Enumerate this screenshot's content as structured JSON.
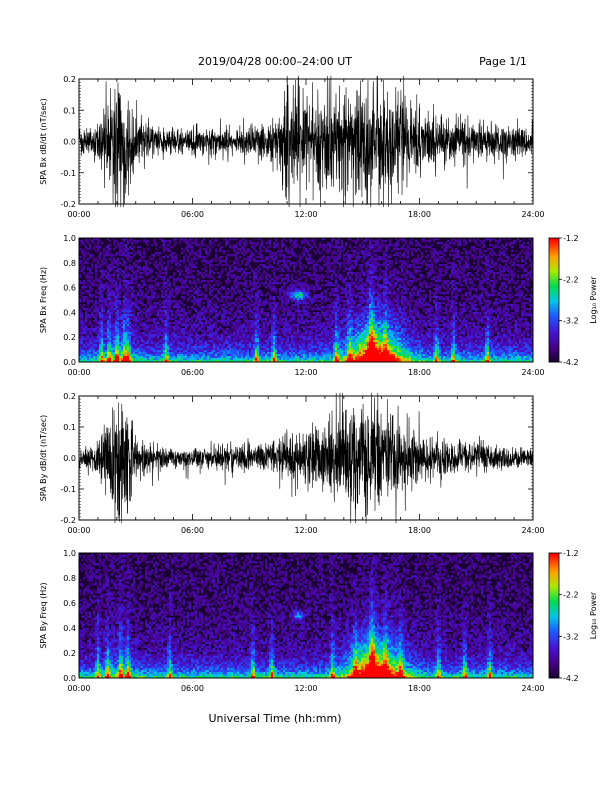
{
  "header": {
    "date_range": "2019/04/28  00:00–24:00 UT",
    "page": "Page 1/1"
  },
  "x_axis_label": "Universal Time (hh:mm)",
  "time_ticks": [
    "00:00",
    "06:00",
    "12:00",
    "18:00",
    "24:00"
  ],
  "colorbar_ticks": [
    "-1.2",
    "-2.2",
    "-3.2",
    "-4.2"
  ],
  "colorbar_label": "Log₁₀ Power",
  "colors": {
    "waveform": "#000000",
    "spectrogram_background": "#1a0033"
  },
  "chart_data": [
    {
      "type": "line",
      "ylabel": "SPA Bx dB/dt (nT/sec)",
      "xlim": [
        0,
        24
      ],
      "ylim": [
        -0.2,
        0.2
      ],
      "yticks": [
        "0.2",
        "0.1",
        "0.0",
        "-0.1",
        "-0.2"
      ],
      "amplitude_envelope": {
        "hours": [
          0,
          1,
          1.5,
          2,
          2.5,
          3,
          4,
          5,
          6,
          7,
          8,
          9,
          10,
          10.5,
          11,
          12,
          13,
          14,
          15,
          15.5,
          16,
          16.5,
          17,
          18,
          19,
          20,
          21,
          22,
          23,
          24
        ],
        "amplitude": [
          0.05,
          0.06,
          0.16,
          0.22,
          0.22,
          0.1,
          0.06,
          0.05,
          0.05,
          0.05,
          0.05,
          0.06,
          0.07,
          0.09,
          0.22,
          0.18,
          0.2,
          0.2,
          0.22,
          0.22,
          0.22,
          0.2,
          0.18,
          0.12,
          0.09,
          0.08,
          0.07,
          0.06,
          0.06,
          0.05
        ]
      }
    },
    {
      "type": "heatmap",
      "ylabel": "SPA Bx Freq (Hz)",
      "xlim": [
        0,
        24
      ],
      "ylim": [
        0,
        1.0
      ],
      "yticks": [
        "1.0",
        "0.8",
        "0.6",
        "0.4",
        "0.2",
        "0.0"
      ],
      "zlim": [
        -4.2,
        -1.2
      ],
      "zlabel": "Log₁₀ Power"
    },
    {
      "type": "line",
      "ylabel": "SPA By dB/dt (nT/sec)",
      "xlim": [
        0,
        24
      ],
      "ylim": [
        -0.2,
        0.2
      ],
      "yticks": [
        "0.2",
        "0.1",
        "0.0",
        "-0.1",
        "-0.2"
      ],
      "amplitude_envelope": {
        "hours": [
          0,
          1,
          1.5,
          2,
          2.5,
          3,
          4,
          5,
          6,
          7,
          8,
          9,
          10,
          10.5,
          11,
          12,
          13,
          14,
          15,
          15.5,
          16,
          16.5,
          17,
          18,
          19,
          20,
          21,
          22,
          23,
          24
        ],
        "amplitude": [
          0.04,
          0.06,
          0.18,
          0.22,
          0.22,
          0.08,
          0.05,
          0.04,
          0.04,
          0.04,
          0.05,
          0.05,
          0.06,
          0.07,
          0.1,
          0.1,
          0.14,
          0.18,
          0.22,
          0.22,
          0.22,
          0.18,
          0.14,
          0.1,
          0.08,
          0.06,
          0.06,
          0.05,
          0.04,
          0.04
        ]
      }
    },
    {
      "type": "heatmap",
      "ylabel": "SPA By Freq (Hz)",
      "xlim": [
        0,
        24
      ],
      "ylim": [
        0,
        1.0
      ],
      "yticks": [
        "1.0",
        "0.8",
        "0.6",
        "0.4",
        "0.2",
        "0.0"
      ],
      "zlim": [
        -4.2,
        -1.2
      ],
      "zlabel": "Log₁₀ Power"
    }
  ]
}
